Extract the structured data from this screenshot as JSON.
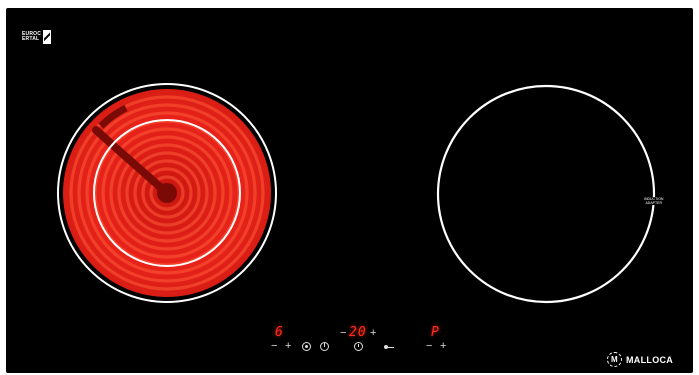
{
  "certification": {
    "lines": [
      "EUROC",
      "ERTAL"
    ]
  },
  "zones": [
    {
      "name": "left-radiant-zone",
      "state": "on",
      "glow_color": "#e8231a"
    },
    {
      "name": "right-induction-zone",
      "state": "off",
      "label_lines": [
        "INDUCTION",
        "ADAPTER"
      ]
    }
  ],
  "controls": {
    "left_display": "6",
    "timer_display": "20",
    "right_display": "P",
    "minus_label": "−",
    "plus_label": "+",
    "timer_minus": "−",
    "timer_plus": "+"
  },
  "brand": {
    "logo_letter": "M",
    "name": "MALLOCA"
  },
  "colors": {
    "panel": "#000000",
    "display": "#ff2a1a",
    "outline": "#ffffff"
  }
}
